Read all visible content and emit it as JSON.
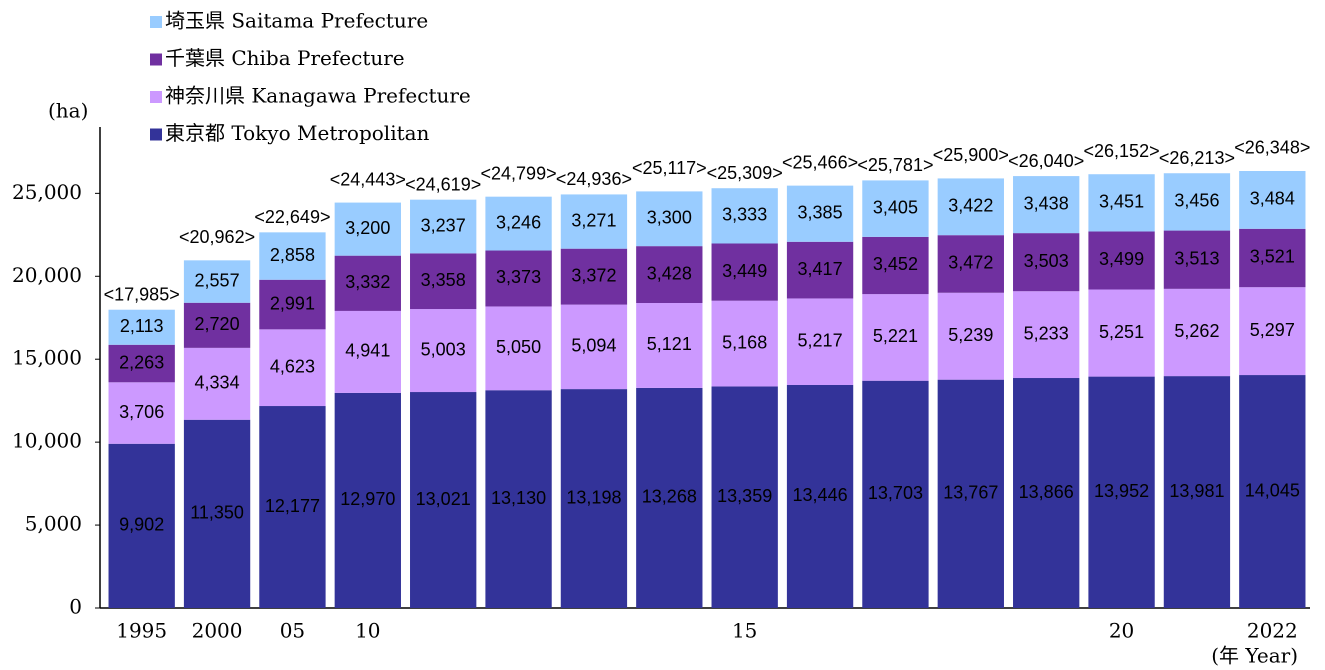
{
  "chart_data": {
    "type": "stacked_bar",
    "y_unit": "(ha)",
    "x_unit": "(年 Year)",
    "categories": [
      "1995",
      "2000",
      "05",
      "10",
      null,
      null,
      null,
      null,
      "15",
      null,
      null,
      null,
      null,
      "20",
      null,
      "2022"
    ],
    "series": [
      {
        "name": "東京都 Tokyo Metropolitan",
        "color": "#333399",
        "label_color": "#ffffff",
        "values": [
          9902,
          11350,
          12177,
          12970,
          13021,
          13130,
          13198,
          13268,
          13359,
          13446,
          13703,
          13767,
          13866,
          13952,
          13981,
          14045
        ],
        "value_labels": [
          "9,902",
          "11,350",
          "12,177",
          "12,970",
          "13,021",
          "13,130",
          "13,198",
          "13,268",
          "13,359",
          "13,446",
          "13,703",
          "13,767",
          "13,866",
          "13,952",
          "13,981",
          "14,045"
        ]
      },
      {
        "name": "神奈川県 Kanagawa Prefecture",
        "color": "#cc99ff",
        "label_color": "#000000",
        "values": [
          3706,
          4334,
          4623,
          4941,
          5003,
          5050,
          5094,
          5121,
          5168,
          5217,
          5221,
          5239,
          5233,
          5251,
          5262,
          5297
        ],
        "value_labels": [
          "3,706",
          "4,334",
          "4,623",
          "4,941",
          "5,003",
          "5,050",
          "5,094",
          "5,121",
          "5,168",
          "5,217",
          "5,221",
          "5,239",
          "5,233",
          "5,251",
          "5,262",
          "5,297"
        ]
      },
      {
        "name": "千葉県 Chiba Prefecture",
        "color": "#7030a0",
        "label_color": "#ffffff",
        "values": [
          2263,
          2720,
          2991,
          3332,
          3358,
          3373,
          3372,
          3428,
          3449,
          3417,
          3452,
          3472,
          3503,
          3499,
          3513,
          3521
        ],
        "value_labels": [
          "2,263",
          "2,720",
          "2,991",
          "3,332",
          "3,358",
          "3,373",
          "3,372",
          "3,428",
          "3,449",
          "3,417",
          "3,452",
          "3,472",
          "3,503",
          "3,499",
          "3,513",
          "3,521"
        ]
      },
      {
        "name": "埼玉県 Saitama Prefecture",
        "color": "#99ccff",
        "label_color": "#000000",
        "values": [
          2113,
          2557,
          2858,
          3200,
          3237,
          3246,
          3271,
          3300,
          3333,
          3385,
          3405,
          3422,
          3438,
          3451,
          3456,
          3484
        ],
        "value_labels": [
          "2,113",
          "2,557",
          "2,858",
          "3,200",
          "3,237",
          "3,246",
          "3,271",
          "3,300",
          "3,333",
          "3,385",
          "3,405",
          "3,422",
          "3,438",
          "3,451",
          "3,456",
          "3,484"
        ]
      }
    ],
    "totals": {
      "values": [
        17985,
        20962,
        22649,
        24443,
        24619,
        24799,
        24936,
        25117,
        25309,
        25466,
        25781,
        25900,
        26040,
        26152,
        26213,
        26348
      ],
      "value_labels": [
        "<17,985>",
        "<20,962>",
        "<22,649>",
        "<24,443>",
        "<24,619>",
        "<24,799>",
        "<24,936>",
        "<25,117>",
        "<25,309>",
        "<25,466>",
        "<25,781>",
        "<25,900>",
        "<26,040>",
        "<26,152>",
        "<26,213>",
        "<26,348>"
      ]
    },
    "ylim": [
      0,
      29000
    ],
    "yticks": [
      0,
      {
        "value": 5000,
        "label": "5,000"
      },
      {
        "value": 10000,
        "label": "10,000"
      },
      {
        "value": 15000,
        "label": "15,000"
      },
      {
        "value": 20000,
        "label": "20,000"
      },
      {
        "value": 25000,
        "label": "25,000"
      }
    ]
  }
}
